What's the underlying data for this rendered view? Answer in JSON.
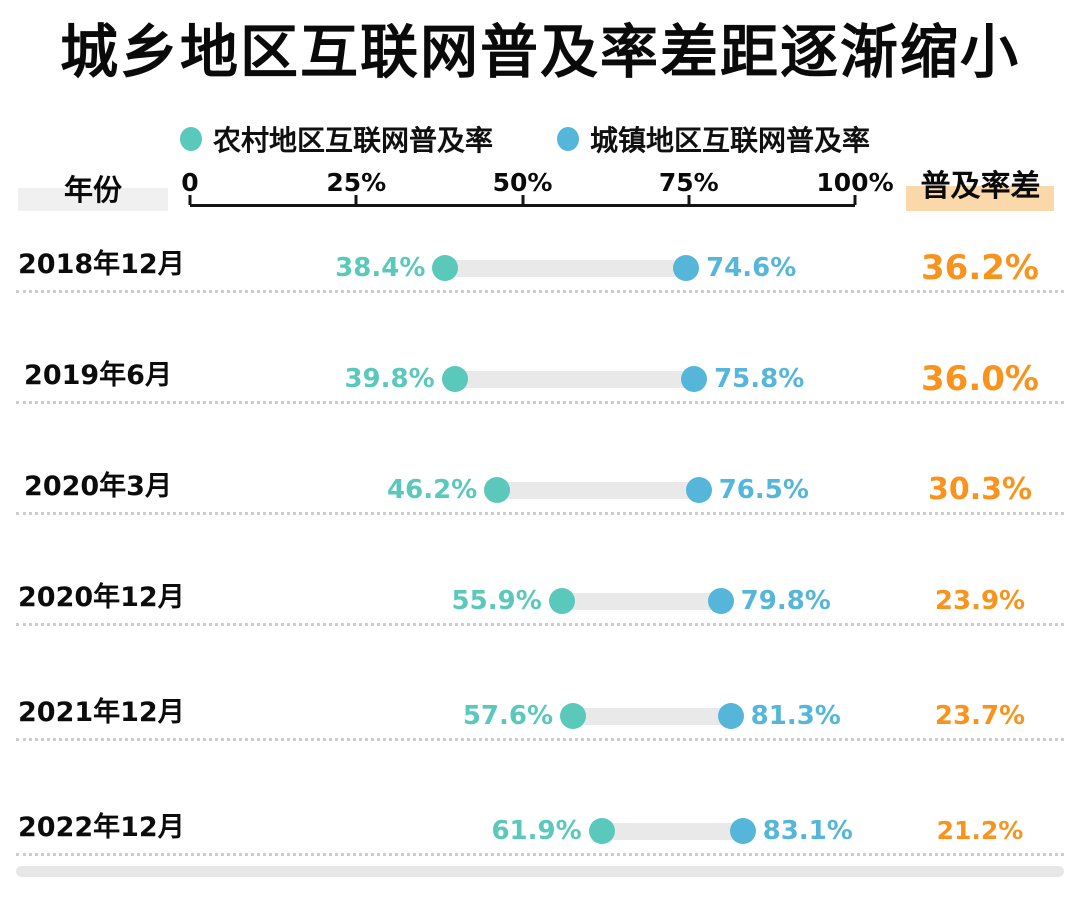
{
  "title": "城乡地区互联网普及率差距逐渐缩小",
  "legend": {
    "rural": {
      "label": "农村地区互联网普及率",
      "swatch": "teal-dot"
    },
    "urban": {
      "label": "城镇地区互联网普及率",
      "swatch": "blue-dot"
    }
  },
  "headers": {
    "year": "年份",
    "diff": "普及率差"
  },
  "axis": {
    "tick_labels": [
      "0",
      "25%",
      "50%",
      "75%",
      "100%"
    ],
    "tick_values": [
      0,
      25,
      50,
      75,
      100
    ],
    "min": 0,
    "max": 100
  },
  "colors": {
    "rural": "#5bc8bc",
    "urban": "#55b6da",
    "diff": "#f8941e",
    "connector": "#e9e9e9",
    "year_header_bg": "#f0f0f0",
    "diff_header_bg": "#fbd8a9"
  },
  "rows": [
    {
      "year": "2018年12月",
      "rural": 38.4,
      "rural_label": "38.4%",
      "urban": 74.6,
      "urban_label": "74.6%",
      "diff": 36.2,
      "diff_label": "36.2%"
    },
    {
      "year": "2019年6月",
      "rural": 39.8,
      "rural_label": "39.8%",
      "urban": 75.8,
      "urban_label": "75.8%",
      "diff": 36.0,
      "diff_label": "36.0%"
    },
    {
      "year": "2020年3月",
      "rural": 46.2,
      "rural_label": "46.2%",
      "urban": 76.5,
      "urban_label": "76.5%",
      "diff": 30.3,
      "diff_label": "30.3%"
    },
    {
      "year": "2020年12月",
      "rural": 55.9,
      "rural_label": "55.9%",
      "urban": 79.8,
      "urban_label": "79.8%",
      "diff": 23.9,
      "diff_label": "23.9%"
    },
    {
      "year": "2021年12月",
      "rural": 57.6,
      "rural_label": "57.6%",
      "urban": 81.3,
      "urban_label": "81.3%",
      "diff": 23.7,
      "diff_label": "23.7%"
    },
    {
      "year": "2022年12月",
      "rural": 61.9,
      "rural_label": "61.9%",
      "urban": 83.1,
      "urban_label": "83.1%",
      "diff": 21.2,
      "diff_label": "21.2%"
    }
  ],
  "chart_data": {
    "type": "scatter",
    "variant": "dumbbell",
    "title": "城乡地区互联网普及率差距逐渐缩小",
    "categories": [
      "2018年12月",
      "2019年6月",
      "2020年3月",
      "2020年12月",
      "2021年12月",
      "2022年12月"
    ],
    "series": [
      {
        "name": "农村地区互联网普及率",
        "values": [
          38.4,
          39.8,
          46.2,
          55.9,
          57.6,
          61.9
        ],
        "color": "#5bc8bc"
      },
      {
        "name": "城镇地区互联网普及率",
        "values": [
          74.6,
          75.8,
          76.5,
          79.8,
          81.3,
          83.1
        ],
        "color": "#55b6da"
      }
    ],
    "diff_column_label": "普及率差",
    "diffs": [
      36.2,
      36.0,
      30.3,
      23.9,
      23.7,
      21.2
    ],
    "xlabel": "",
    "ylabel": "年份",
    "xlim": [
      0,
      100
    ],
    "x_tick_labels": [
      "0",
      "25%",
      "50%",
      "75%",
      "100%"
    ],
    "legend_position": "top",
    "grid": false
  }
}
